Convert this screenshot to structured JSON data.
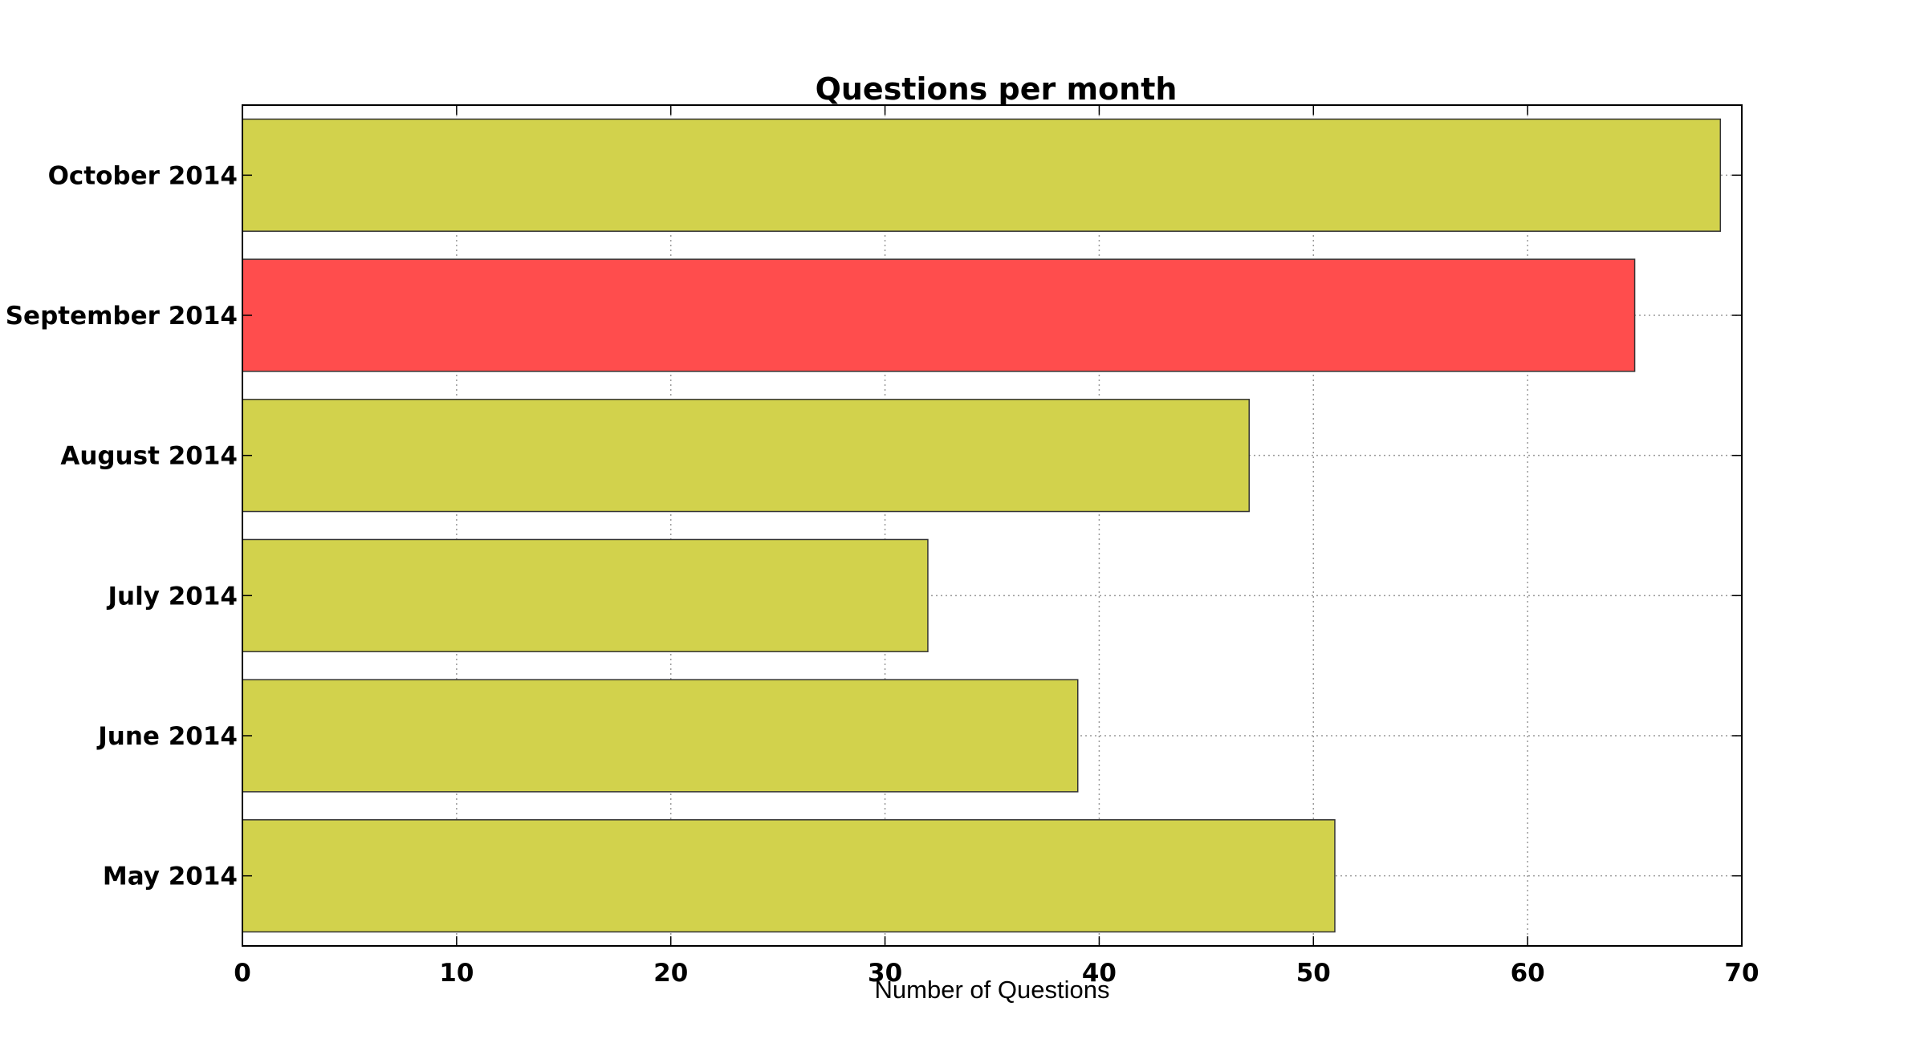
{
  "chart_data": {
    "type": "bar",
    "orientation": "horizontal",
    "title": "Questions per month",
    "xlabel": "Number of Questions",
    "ylabel": "",
    "xlim": [
      0,
      70
    ],
    "xticks": [
      0,
      10,
      20,
      30,
      40,
      50,
      60,
      70
    ],
    "categories": [
      "October 2014",
      "September 2014",
      "August 2014",
      "July 2014",
      "June 2014",
      "May 2014"
    ],
    "values": [
      69,
      65,
      47,
      32,
      39,
      51
    ],
    "highlight_category": "September 2014",
    "grid": true,
    "legend": "none",
    "colors": {
      "bar": "#d2d24c",
      "highlight": "#ff4d4d",
      "edge": "#333333"
    }
  }
}
